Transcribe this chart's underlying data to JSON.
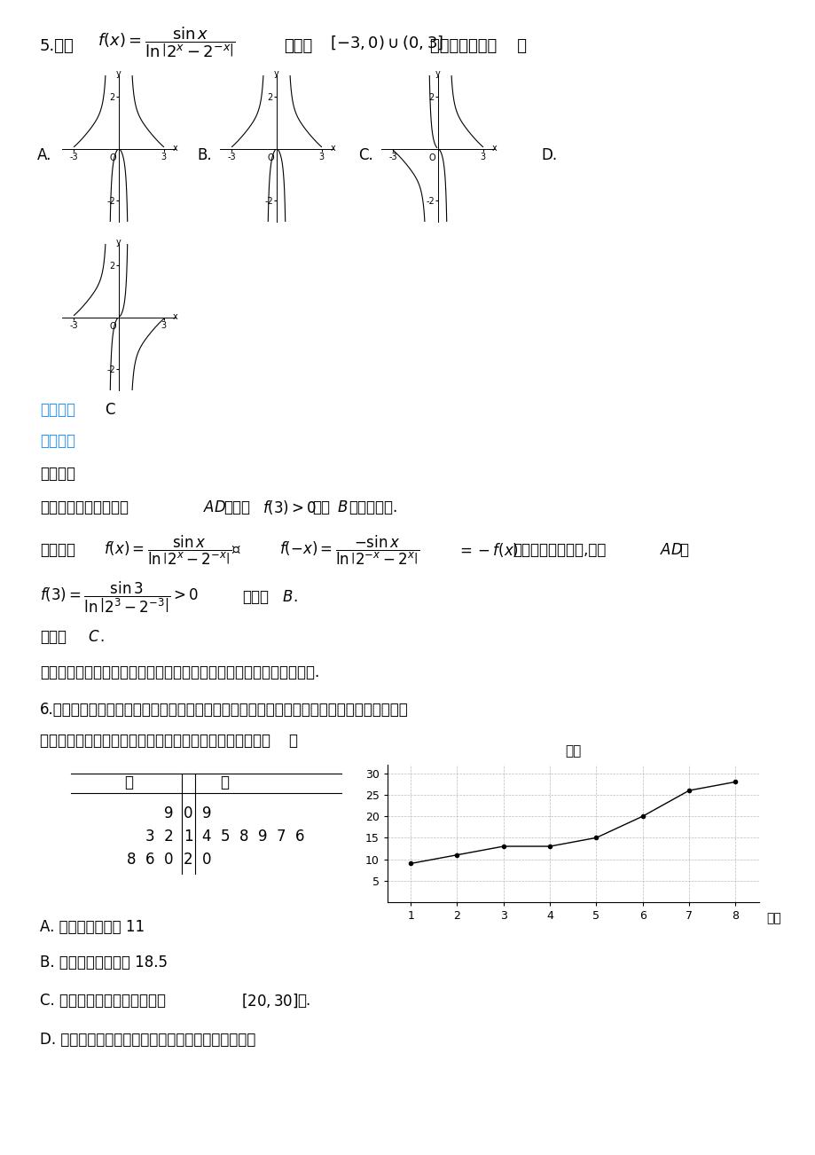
{
  "bg_color": "#ffffff",
  "answer_color": "#1E90FF",
  "text_color": "#000000",
  "line_chart_x": [
    1,
    2,
    3,
    4,
    5,
    6,
    7,
    8
  ],
  "line_chart_y": [
    9,
    11,
    13,
    13,
    15,
    20,
    26,
    28
  ],
  "line_chart_yticks": [
    5,
    10,
    15,
    20,
    25,
    30
  ],
  "line_chart_xticks": [
    1,
    2,
    3,
    4,
    5,
    6,
    7,
    8
  ]
}
